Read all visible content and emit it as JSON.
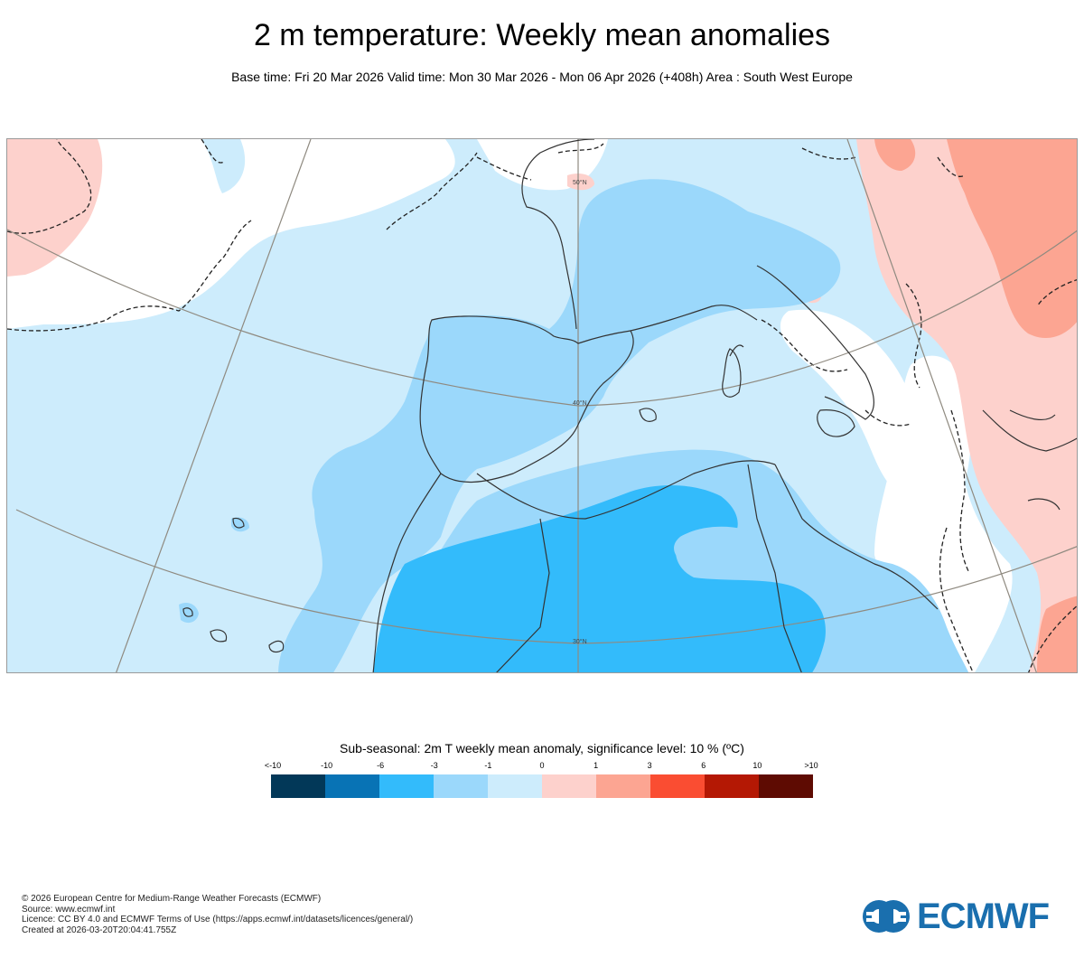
{
  "header": {
    "title": "2 m temperature: Weekly mean anomalies",
    "subtitle": "Base time: Fri 20 Mar 2026 Valid time: Mon 30 Mar 2026 - Mon 06 Apr 2026 (+408h) Area : South West Europe"
  },
  "map": {
    "area": "South West Europe",
    "meridian_labels": [
      "50°N",
      "40°N",
      "30°N"
    ]
  },
  "legend": {
    "title": "Sub-seasonal: 2m T weekly mean anomaly, significance level: 10 % (ºC)",
    "ticks": [
      "<-10",
      "-10",
      "-6",
      "-3",
      "-1",
      "0",
      "1",
      "3",
      "6",
      "10",
      ">10"
    ],
    "colors": [
      "#023858",
      "#0873b5",
      "#33bbfb",
      "#9bd8fb",
      "#cdecfc",
      "#fdd1cc",
      "#fca592",
      "#fa4d32",
      "#b41804",
      "#5e0b02"
    ]
  },
  "footer": {
    "lines": [
      "© 2026 European Centre for Medium-Range Weather Forecasts (ECMWF)",
      "Source: www.ecmwf.int",
      "Licence: CC BY 4.0 and ECMWF Terms of Use (https://apps.ecmwf.int/datasets/licences/general/)",
      "Created at 2026-03-20T20:04:41.755Z"
    ]
  },
  "brand": {
    "logo_text": "ECMWF",
    "logo_color": "#1a6fae"
  }
}
